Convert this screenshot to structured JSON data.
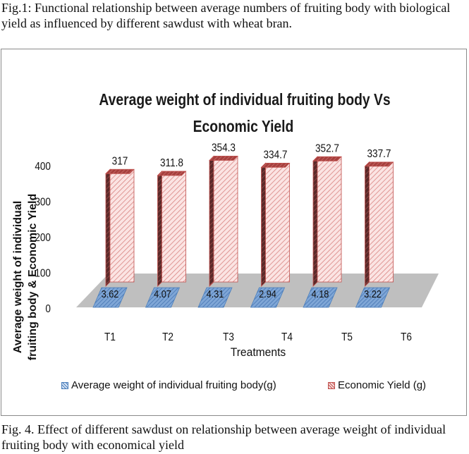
{
  "captions": {
    "top": "Fig.1: Functional relationship between average numbers of fruiting body with biological yield as influenced by different sawdust with wheat bran.",
    "bottom": "Fig. 4. Effect of different sawdust on relationship between average weight of individual fruiting body with economical yield"
  },
  "chart_data": {
    "type": "bar",
    "title_line1": "Average weight of individual fruiting body Vs",
    "title_line2": "Economic Yield",
    "xlabel": "Treatments",
    "ylabel_line1": "Average weight of individual",
    "ylabel_line2": "fruiting body & Economic Yield",
    "categories": [
      "T1",
      "T2",
      "T3",
      "T4",
      "T5",
      "T6"
    ],
    "yticks": [
      "0",
      "100",
      "200",
      "300",
      "400"
    ],
    "ylim": [
      0,
      400
    ],
    "grid": false,
    "legend_position": "bottom",
    "series": [
      {
        "name": "Average weight of individual fruiting body(g)",
        "values": [
          3.62,
          4.07,
          4.31,
          2.94,
          4.18,
          3.22
        ],
        "labels": [
          "3.62",
          "4.07",
          "4.31",
          "2.94",
          "4.18",
          "3.22"
        ],
        "color": "#4a7ebb"
      },
      {
        "name": "Economic Yield (g)",
        "values": [
          317,
          311.8,
          354.3,
          334.7,
          352.7,
          337.7
        ],
        "labels": [
          "317",
          "311.8",
          "354.3",
          "334.7",
          "352.7",
          "337.7"
        ],
        "color": "#c0504d"
      }
    ]
  }
}
